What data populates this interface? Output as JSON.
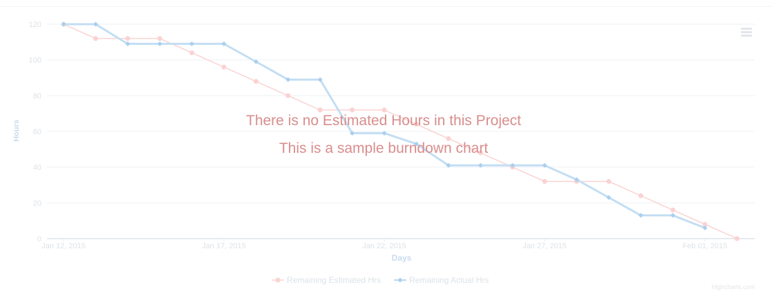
{
  "chart_data": {
    "type": "line",
    "xlabel": "Days",
    "ylabel": "Hours",
    "ylim": [
      0,
      120
    ],
    "yticks": [
      0,
      20,
      40,
      60,
      80,
      100,
      120
    ],
    "xtick_labels": [
      "Jan 12, 2015",
      "Jan 17, 2015",
      "Jan 22, 2015",
      "Jan 27, 2015",
      "Feb 01, 2015"
    ],
    "x": [
      "2015-01-12",
      "2015-01-13",
      "2015-01-14",
      "2015-01-15",
      "2015-01-16",
      "2015-01-17",
      "2015-01-18",
      "2015-01-19",
      "2015-01-20",
      "2015-01-21",
      "2015-01-22",
      "2015-01-23",
      "2015-01-24",
      "2015-01-25",
      "2015-01-26",
      "2015-01-27",
      "2015-01-28",
      "2015-01-29",
      "2015-01-30",
      "2015-01-31",
      "2015-02-01",
      "2015-02-02"
    ],
    "series": [
      {
        "name": "Remaining Estimated Hrs",
        "color": "#fbd2d2",
        "values": [
          120,
          112,
          112,
          112,
          104,
          96,
          88,
          80,
          72,
          72,
          72,
          64,
          56,
          48,
          40,
          32,
          32,
          32,
          24,
          16,
          8,
          0
        ]
      },
      {
        "name": "Remaining Actual Hrs",
        "color": "#c3def3",
        "values": [
          120,
          120,
          109,
          109,
          109,
          109,
          99,
          89,
          89,
          59,
          59,
          53,
          41,
          41,
          41,
          41,
          33,
          23,
          13,
          13,
          6,
          null
        ]
      }
    ],
    "grid": true,
    "legend_position": "bottom-center"
  },
  "overlay": {
    "line1": "There is no Estimated Hours in this Project",
    "line2": "This is a sample burndown chart"
  },
  "credits": "Highcharts.com",
  "colors": {
    "grid": "#eef1f4",
    "axis_text": "#dde2e7",
    "axis_title": "#c9dcee",
    "overlay_text": "#d98d8d"
  }
}
